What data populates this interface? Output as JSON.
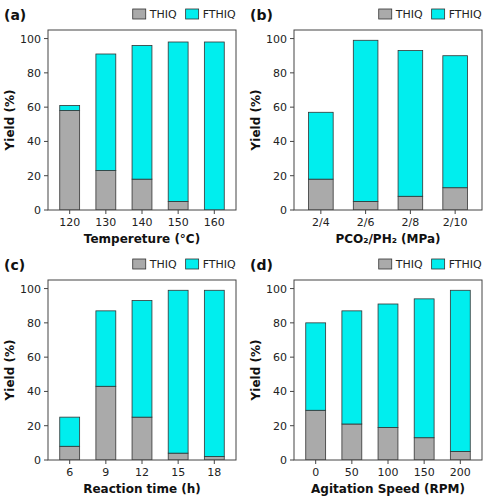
{
  "chart_data": [
    {
      "type": "bar",
      "stacked": true,
      "title": "(a)",
      "categories": [
        "120",
        "130",
        "140",
        "150",
        "160"
      ],
      "series": [
        {
          "name": "THIQ",
          "color": "#aaaaaa",
          "values": [
            58,
            23,
            18,
            5,
            0
          ]
        },
        {
          "name": "FTHIQ",
          "color": "#00eeee",
          "values": [
            3,
            68,
            78,
            93,
            98
          ]
        }
      ],
      "xlabel": "Tempereture (°C)",
      "ylabel": "Yield (%)",
      "ylim": [
        0,
        105
      ],
      "yticks": [
        0,
        20,
        40,
        60,
        80,
        100
      ],
      "grid": false,
      "legend": "upper right"
    },
    {
      "type": "bar",
      "stacked": true,
      "title": "(b)",
      "categories": [
        "2/4",
        "2/6",
        "2/8",
        "2/10"
      ],
      "series": [
        {
          "name": "THIQ",
          "color": "#aaaaaa",
          "values": [
            18,
            5,
            8,
            13
          ]
        },
        {
          "name": "FTHIQ",
          "color": "#00eeee",
          "values": [
            39,
            94,
            85,
            77
          ]
        }
      ],
      "xlabel": "PCO₂/PH₂ (MPa)",
      "ylabel": "Yield (%)",
      "ylim": [
        0,
        105
      ],
      "yticks": [
        0,
        20,
        40,
        60,
        80,
        100
      ],
      "grid": false,
      "legend": "upper right"
    },
    {
      "type": "bar",
      "stacked": true,
      "title": "(c)",
      "categories": [
        "6",
        "9",
        "12",
        "15",
        "18"
      ],
      "series": [
        {
          "name": "THIQ",
          "color": "#aaaaaa",
          "values": [
            8,
            43,
            25,
            4,
            2
          ]
        },
        {
          "name": "FTHIQ",
          "color": "#00eeee",
          "values": [
            17,
            44,
            68,
            95,
            97
          ]
        }
      ],
      "xlabel": "Reaction time (h)",
      "ylabel": "Yield (%)",
      "ylim": [
        0,
        105
      ],
      "yticks": [
        0,
        20,
        40,
        60,
        80,
        100
      ],
      "grid": false,
      "legend": "upper right"
    },
    {
      "type": "bar",
      "stacked": true,
      "title": "(d)",
      "categories": [
        "0",
        "50",
        "100",
        "150",
        "200"
      ],
      "series": [
        {
          "name": "THIQ",
          "color": "#aaaaaa",
          "values": [
            29,
            21,
            19,
            13,
            5
          ]
        },
        {
          "name": "FTHIQ",
          "color": "#00eeee",
          "values": [
            51,
            66,
            72,
            81,
            94
          ]
        }
      ],
      "xlabel": "Agitation Speed (RPM)",
      "ylabel": "Yield (%)",
      "ylim": [
        0,
        105
      ],
      "yticks": [
        0,
        20,
        40,
        60,
        80,
        100
      ],
      "grid": false,
      "legend": "upper right"
    }
  ]
}
